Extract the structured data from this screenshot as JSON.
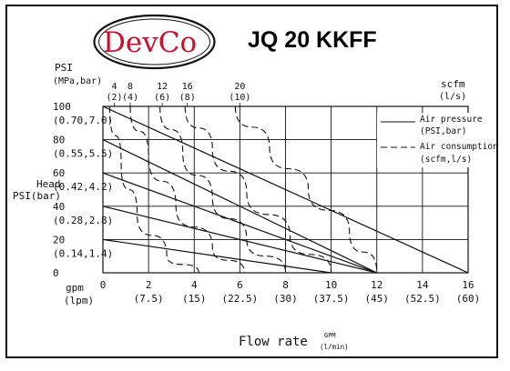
{
  "brand": {
    "name": "DevCo",
    "logo_text_1": "Dev",
    "logo_text_2": "Co"
  },
  "model_title": "JQ 20 KKFF",
  "colors": {
    "brand_red": "#c8102e",
    "ink": "#111111"
  },
  "chart_data": {
    "type": "line",
    "title": "JQ 20 KKFF",
    "xlabel": "Flow rate",
    "xlabel_unit_top": "GPM",
    "xlabel_unit_bottom": "(l/min)",
    "x_axis_unit_label": "gpm",
    "x_axis_unit_label_alt": "(lpm)",
    "xlim": [
      0,
      16
    ],
    "x_ticks": [
      {
        "value": 0,
        "label": "0",
        "alt": ""
      },
      {
        "value": 2,
        "label": "2",
        "alt": "(7.5)"
      },
      {
        "value": 4,
        "label": "4",
        "alt": "(15)"
      },
      {
        "value": 6,
        "label": "6",
        "alt": "(22.5)"
      },
      {
        "value": 8,
        "label": "8",
        "alt": "(30)"
      },
      {
        "value": 10,
        "label": "10",
        "alt": "(37.5)"
      },
      {
        "value": 12,
        "label": "12",
        "alt": "(45)"
      },
      {
        "value": 14,
        "label": "14",
        "alt": "(52.5)"
      },
      {
        "value": 16,
        "label": "16",
        "alt": "(60)"
      }
    ],
    "ylabel_line1": "Head",
    "ylabel_line2": "PSI(bar)",
    "y_axis_unit_label": "PSI",
    "y_axis_unit_label_alt": "(MPa,bar)",
    "ylim": [
      0,
      100
    ],
    "y_ticks": [
      {
        "value": 0,
        "label": "0",
        "alt": ""
      },
      {
        "value": 20,
        "label": "20",
        "alt": "(0.14,1.4)"
      },
      {
        "value": 40,
        "label": "40",
        "alt": "(0.28,2.8)"
      },
      {
        "value": 60,
        "label": "60",
        "alt": "(0.42,4.2)"
      },
      {
        "value": 80,
        "label": "80",
        "alt": "(0.55,5.5)"
      },
      {
        "value": 100,
        "label": "100",
        "alt": "(0.70,7.0)"
      }
    ],
    "right_axis_label": "scfm",
    "right_axis_label_alt": "(l/s)",
    "top_ticks": [
      {
        "x": 0.5,
        "label": "4",
        "alt": "(2)"
      },
      {
        "x": 1.2,
        "label": "8",
        "alt": "(4)"
      },
      {
        "x": 2.6,
        "label": "12",
        "alt": "(6)"
      },
      {
        "x": 3.7,
        "label": "16",
        "alt": "(8)"
      },
      {
        "x": 6.0,
        "label": "20",
        "alt": "(10)"
      }
    ],
    "grid": true,
    "legend": {
      "placement": "top-right",
      "entries": [
        {
          "style": "solid",
          "line1": "Air pressure",
          "line2": "(PSI,bar)"
        },
        {
          "style": "dashed",
          "line1": "Air consumption",
          "line2": "(scfm,l/s)"
        }
      ]
    },
    "air_pressure_curves": [
      {
        "points": [
          [
            0,
            100
          ],
          [
            16,
            0
          ]
        ]
      },
      {
        "points": [
          [
            0,
            80
          ],
          [
            12,
            0
          ]
        ]
      },
      {
        "points": [
          [
            0,
            60
          ],
          [
            12,
            0
          ]
        ]
      },
      {
        "points": [
          [
            0,
            40
          ],
          [
            12,
            0
          ]
        ]
      },
      {
        "points": [
          [
            0,
            20
          ],
          [
            10,
            0
          ]
        ]
      }
    ],
    "air_consumption_curves": [
      {
        "points": [
          [
            0.3,
            100
          ],
          [
            0.8,
            65
          ],
          [
            1.5,
            35
          ],
          [
            2.8,
            10
          ],
          [
            4.2,
            0
          ]
        ]
      },
      {
        "points": [
          [
            1.2,
            100
          ],
          [
            2.0,
            70
          ],
          [
            3.2,
            40
          ],
          [
            4.8,
            15
          ],
          [
            6.2,
            0
          ]
        ]
      },
      {
        "points": [
          [
            2.5,
            100
          ],
          [
            3.5,
            72
          ],
          [
            4.8,
            45
          ],
          [
            6.3,
            20
          ],
          [
            8.0,
            0
          ]
        ]
      },
      {
        "points": [
          [
            3.6,
            100
          ],
          [
            4.8,
            74
          ],
          [
            6.3,
            48
          ],
          [
            8.2,
            22
          ],
          [
            10.0,
            0
          ]
        ]
      },
      {
        "points": [
          [
            5.8,
            100
          ],
          [
            7.3,
            75
          ],
          [
            9.0,
            50
          ],
          [
            10.8,
            25
          ],
          [
            12.0,
            0
          ]
        ]
      }
    ]
  }
}
